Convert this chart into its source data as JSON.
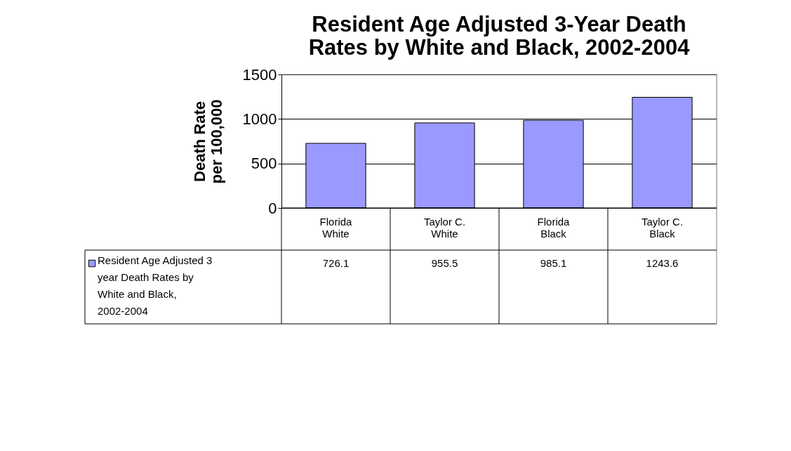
{
  "chart_data": {
    "type": "bar",
    "title": "Resident Age Adjusted 3-Year Death Rates by White and Black, 2002-2004",
    "ylabel": "Death Rate per 100,000",
    "categories": [
      "Florida White",
      "Taylor C. White",
      "Florida Black",
      "Taylor C. Black"
    ],
    "series": [
      {
        "name": "Resident Age Adjusted 3 year Death Rates by White and Black, 2002-2004",
        "color": "#9999ff",
        "values": [
          726.1,
          955.5,
          985.1,
          1243.6
        ]
      }
    ],
    "ylim": [
      0,
      1500
    ],
    "yticks": [
      0,
      500,
      1000,
      1500
    ],
    "grid": "y",
    "legend": "bottom",
    "data_labels": true
  }
}
